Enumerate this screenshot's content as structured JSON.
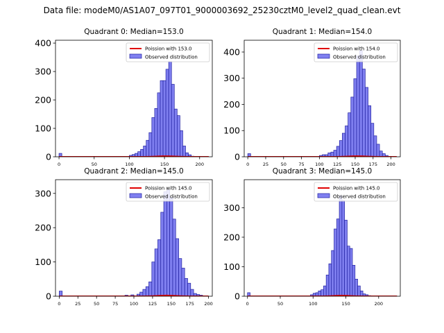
{
  "figure_title": "Data file: modeM0/AS1A07_097T01_9000003692_25230cztM0_level2_quad_clean.evt",
  "colors": {
    "fit": "#e00000",
    "bar_fill": "#7f7ff0",
    "bar_edge": "#2020a0"
  },
  "chart_data": [
    {
      "type": "bar",
      "title": "Quadrant 0: Median=153.0",
      "legend": {
        "fit_label": "Poission with 153.0",
        "hist_label": "Observed distribution",
        "placement": "top-right"
      },
      "median": 153.0,
      "bin_width": 4,
      "xlim": [
        -5,
        218
      ],
      "ylim": [
        0,
        410
      ],
      "xticks": [
        0,
        50,
        100,
        150,
        200
      ],
      "yticks": [
        0,
        100,
        200,
        300,
        400
      ],
      "bins": [
        [
          0,
          12
        ],
        [
          100,
          5
        ],
        [
          104,
          8
        ],
        [
          108,
          12
        ],
        [
          112,
          18
        ],
        [
          116,
          26
        ],
        [
          120,
          38
        ],
        [
          124,
          58
        ],
        [
          128,
          85
        ],
        [
          132,
          138
        ],
        [
          136,
          170
        ],
        [
          140,
          225
        ],
        [
          144,
          268
        ],
        [
          148,
          268
        ],
        [
          152,
          308
        ],
        [
          156,
          335
        ],
        [
          160,
          255
        ],
        [
          164,
          168
        ],
        [
          168,
          145
        ],
        [
          172,
          92
        ],
        [
          176,
          38
        ],
        [
          180,
          14
        ],
        [
          184,
          7
        ],
        [
          188,
          2
        ]
      ]
    },
    {
      "type": "bar",
      "title": "Quadrant 1: Median=154.0",
      "legend": {
        "fit_label": "Poission with 154.0",
        "hist_label": "Observed distribution",
        "placement": "top-right"
      },
      "median": 154.0,
      "bin_width": 4,
      "xlim": [
        -5,
        213
      ],
      "ylim": [
        0,
        445
      ],
      "xticks": [
        0,
        25,
        50,
        75,
        100,
        125,
        150,
        175,
        200
      ],
      "yticks": [
        0,
        100,
        200,
        300,
        400
      ],
      "bins": [
        [
          0,
          12
        ],
        [
          100,
          5
        ],
        [
          104,
          8
        ],
        [
          108,
          8
        ],
        [
          112,
          15
        ],
        [
          116,
          18
        ],
        [
          120,
          25
        ],
        [
          124,
          40
        ],
        [
          128,
          62
        ],
        [
          132,
          90
        ],
        [
          136,
          118
        ],
        [
          140,
          168
        ],
        [
          144,
          228
        ],
        [
          148,
          298
        ],
        [
          152,
          385
        ],
        [
          156,
          405
        ],
        [
          160,
          335
        ],
        [
          164,
          265
        ],
        [
          168,
          195
        ],
        [
          172,
          128
        ],
        [
          176,
          80
        ],
        [
          180,
          48
        ],
        [
          184,
          22
        ],
        [
          188,
          12
        ],
        [
          192,
          5
        ]
      ]
    },
    {
      "type": "bar",
      "title": "Quadrant 2: Median=145.0",
      "legend": {
        "fit_label": "Poission with 145.0",
        "hist_label": "Observed distribution",
        "placement": "top-right"
      },
      "median": 145.0,
      "bin_width": 4,
      "xlim": [
        -5,
        205
      ],
      "ylim": [
        0,
        340
      ],
      "xticks": [
        0,
        25,
        50,
        75,
        100,
        125,
        150,
        175,
        200
      ],
      "yticks": [
        0,
        100,
        200,
        300
      ],
      "bins": [
        [
          0,
          15
        ],
        [
          88,
          3
        ],
        [
          96,
          4
        ],
        [
          104,
          6
        ],
        [
          108,
          12
        ],
        [
          112,
          20
        ],
        [
          116,
          28
        ],
        [
          120,
          42
        ],
        [
          124,
          100
        ],
        [
          128,
          138
        ],
        [
          132,
          165
        ],
        [
          136,
          245
        ],
        [
          140,
          305
        ],
        [
          144,
          310
        ],
        [
          148,
          288
        ],
        [
          152,
          225
        ],
        [
          156,
          168
        ],
        [
          160,
          110
        ],
        [
          164,
          82
        ],
        [
          168,
          52
        ],
        [
          172,
          38
        ],
        [
          176,
          20
        ],
        [
          180,
          8
        ],
        [
          184,
          5
        ],
        [
          188,
          3
        ]
      ]
    },
    {
      "type": "bar",
      "title": "Quadrant 3: Median=145.0",
      "legend": {
        "fit_label": "Poission with 145.0",
        "hist_label": "Observed distribution",
        "placement": "top-right"
      },
      "median": 145.0,
      "bin_width": 4,
      "xlim": [
        -5,
        233
      ],
      "ylim": [
        0,
        395
      ],
      "xticks": [
        0,
        50,
        100,
        150,
        200
      ],
      "yticks": [
        0,
        100,
        200,
        300
      ],
      "bins": [
        [
          0,
          12
        ],
        [
          96,
          5
        ],
        [
          100,
          10
        ],
        [
          104,
          12
        ],
        [
          108,
          18
        ],
        [
          112,
          22
        ],
        [
          116,
          35
        ],
        [
          120,
          72
        ],
        [
          124,
          110
        ],
        [
          128,
          155
        ],
        [
          132,
          228
        ],
        [
          136,
          262
        ],
        [
          140,
          340
        ],
        [
          144,
          325
        ],
        [
          148,
          258
        ],
        [
          152,
          170
        ],
        [
          156,
          162
        ],
        [
          160,
          105
        ],
        [
          164,
          58
        ],
        [
          168,
          35
        ],
        [
          172,
          18
        ],
        [
          176,
          8
        ],
        [
          180,
          5
        ],
        [
          184,
          2
        ]
      ]
    }
  ]
}
